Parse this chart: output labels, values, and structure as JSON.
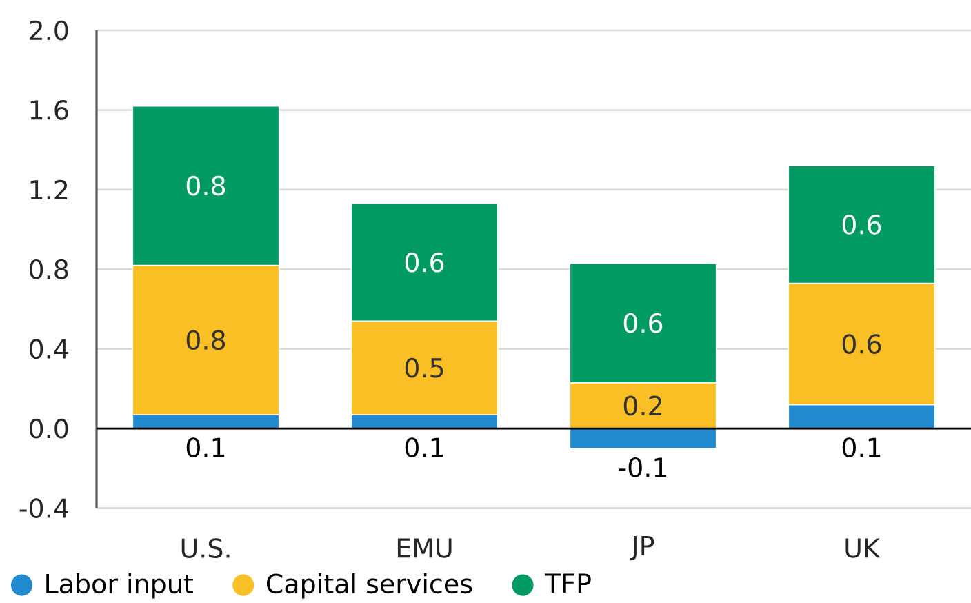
{
  "chart_data": {
    "type": "bar",
    "stacked": true,
    "categories": [
      "U.S.",
      "EMU",
      "JP",
      "UK"
    ],
    "series": [
      {
        "name": "Labor input",
        "color": "#228bd0",
        "values": [
          0.07,
          0.07,
          -0.1,
          0.12
        ],
        "value_labels": [
          "0.1",
          "0.1",
          "-0.1",
          "0.1"
        ]
      },
      {
        "name": "Capital services",
        "color": "#fbbf26",
        "values": [
          0.75,
          0.47,
          0.23,
          0.61
        ],
        "value_labels": [
          "0.8",
          "0.5",
          "0.2",
          "0.6"
        ]
      },
      {
        "name": "TFP",
        "color": "#009a62",
        "values": [
          0.8,
          0.59,
          0.6,
          0.59
        ],
        "value_labels": [
          "0.8",
          "0.6",
          "0.6",
          "0.6"
        ]
      }
    ],
    "ylim": [
      -0.4,
      2.0
    ],
    "yticks": [
      -0.4,
      {
        "value": 0,
        "label": "0.0"
      },
      0.4,
      0.8,
      1.2,
      1.6,
      {
        "value": 2,
        "label": "2.0"
      }
    ],
    "grid": "y",
    "legend": "bottom"
  }
}
